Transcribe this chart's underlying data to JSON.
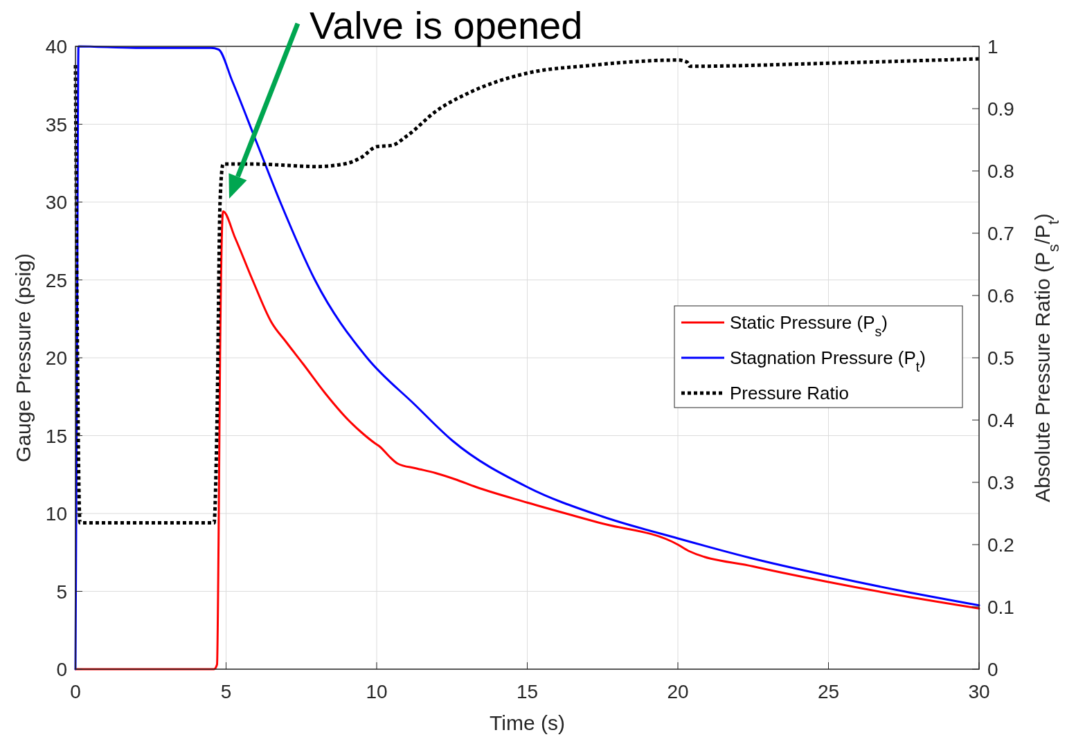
{
  "chart_data": {
    "type": "line",
    "xlabel": "Time (s)",
    "ylabel": "Gauge Pressure (psig)",
    "y2label": "Absolute Pressure Ratio (P$_{s}$/P$_{t}$)",
    "xlim": [
      0,
      30
    ],
    "xticks": [
      0,
      5,
      10,
      15,
      20,
      25,
      30
    ],
    "ylim": [
      0,
      40
    ],
    "yticks": [
      0,
      5,
      10,
      15,
      20,
      25,
      30,
      35,
      40
    ],
    "y2lim": [
      0,
      1
    ],
    "y2ticks": [
      0,
      0.1,
      0.2,
      0.3,
      0.4,
      0.5,
      0.6,
      0.7,
      0.8,
      0.9,
      1
    ],
    "grid": true,
    "legend": "right",
    "annotations": [
      "Valve is opened"
    ],
    "series": [
      {
        "name": "Static Pressure (P$_{s}$)",
        "color": "#ff0000",
        "line_style": "solid",
        "x": [
          0,
          4.6,
          4.7,
          4.75,
          4.8,
          4.9,
          5.3,
          5.9,
          6.5,
          7.0,
          7.56,
          8.3,
          9.06,
          9.5,
          9.95,
          10.1,
          10.4,
          10.7,
          11.3,
          11.95,
          12.6,
          13.3,
          15,
          17.4,
          20,
          20.35,
          22.5,
          25,
          27.5,
          30
        ],
        "values": [
          0,
          0,
          0.3,
          8,
          20,
          29.4,
          27.7,
          24.9,
          22.3,
          21.0,
          19.6,
          17.7,
          16.0,
          15.2,
          14.5,
          14.3,
          13.7,
          13.2,
          12.9,
          12.6,
          12.2,
          11.7,
          10.7,
          9.4,
          8.0,
          7.6,
          6.6,
          5.6,
          4.7,
          3.9
        ]
      },
      {
        "name": "Stagnation Pressure (P$_{t}$)",
        "color": "#0000ff",
        "line_style": "solid",
        "x": [
          0,
          0.05,
          0.1,
          2,
          4.5,
          4.75,
          5.2,
          6,
          6.8,
          7.95,
          9.68,
          11.26,
          12.5,
          15,
          17.5,
          20,
          22.5,
          25,
          27.5,
          30
        ],
        "values": [
          0,
          20,
          40,
          39.9,
          39.9,
          39.8,
          37.8,
          33.9,
          30,
          25,
          20,
          17.0,
          14.7,
          11.7,
          9.8,
          8.4,
          7.1,
          6.0,
          5.0,
          4.1
        ]
      },
      {
        "name": "Pressure Ratio",
        "color": "#000000",
        "line_style": "dotted",
        "axis": "y2",
        "x": [
          0,
          0.05,
          0.15,
          4.6,
          4.7,
          4.8,
          4.9,
          6,
          7,
          8,
          9,
          9.5,
          10,
          10.5,
          11,
          12,
          13,
          15,
          17,
          20,
          20.3,
          20.4,
          25,
          30
        ],
        "values": [
          0.97,
          0.6,
          0.235,
          0.235,
          0.4,
          0.75,
          0.811,
          0.811,
          0.809,
          0.807,
          0.812,
          0.822,
          0.839,
          0.841,
          0.856,
          0.897,
          0.924,
          0.957,
          0.969,
          0.978,
          0.975,
          0.968,
          0.973,
          0.98
        ]
      }
    ]
  }
}
